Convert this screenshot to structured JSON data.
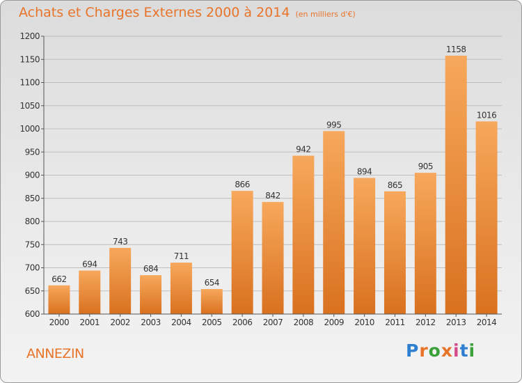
{
  "title": "Achats et Charges Externes 2000 à 2014",
  "subtitle": "(en milliers d'€)",
  "commune": "ANNEZIN",
  "logo": {
    "text": "Proxiti",
    "colors": [
      "#2f7fd0",
      "#e8742a",
      "#3aa13a",
      "#e8742a",
      "#d64a8c",
      "#2f7fd0",
      "#3aa13a"
    ]
  },
  "colors": {
    "accent": "#e8742a",
    "bar_top": "#f7a85c",
    "bar_bottom": "#d9711f"
  },
  "chart_data": {
    "type": "bar",
    "categories": [
      "2000",
      "2001",
      "2002",
      "2003",
      "2004",
      "2005",
      "2006",
      "2007",
      "2008",
      "2009",
      "2010",
      "2011",
      "2012",
      "2013",
      "2014"
    ],
    "values": [
      662,
      694,
      743,
      684,
      711,
      654,
      866,
      842,
      942,
      995,
      894,
      865,
      905,
      1158,
      1016
    ],
    "ylim": [
      600,
      1200
    ],
    "yticks": [
      600,
      650,
      700,
      750,
      800,
      850,
      900,
      950,
      1000,
      1050,
      1100,
      1150,
      1200
    ],
    "grid": true
  }
}
